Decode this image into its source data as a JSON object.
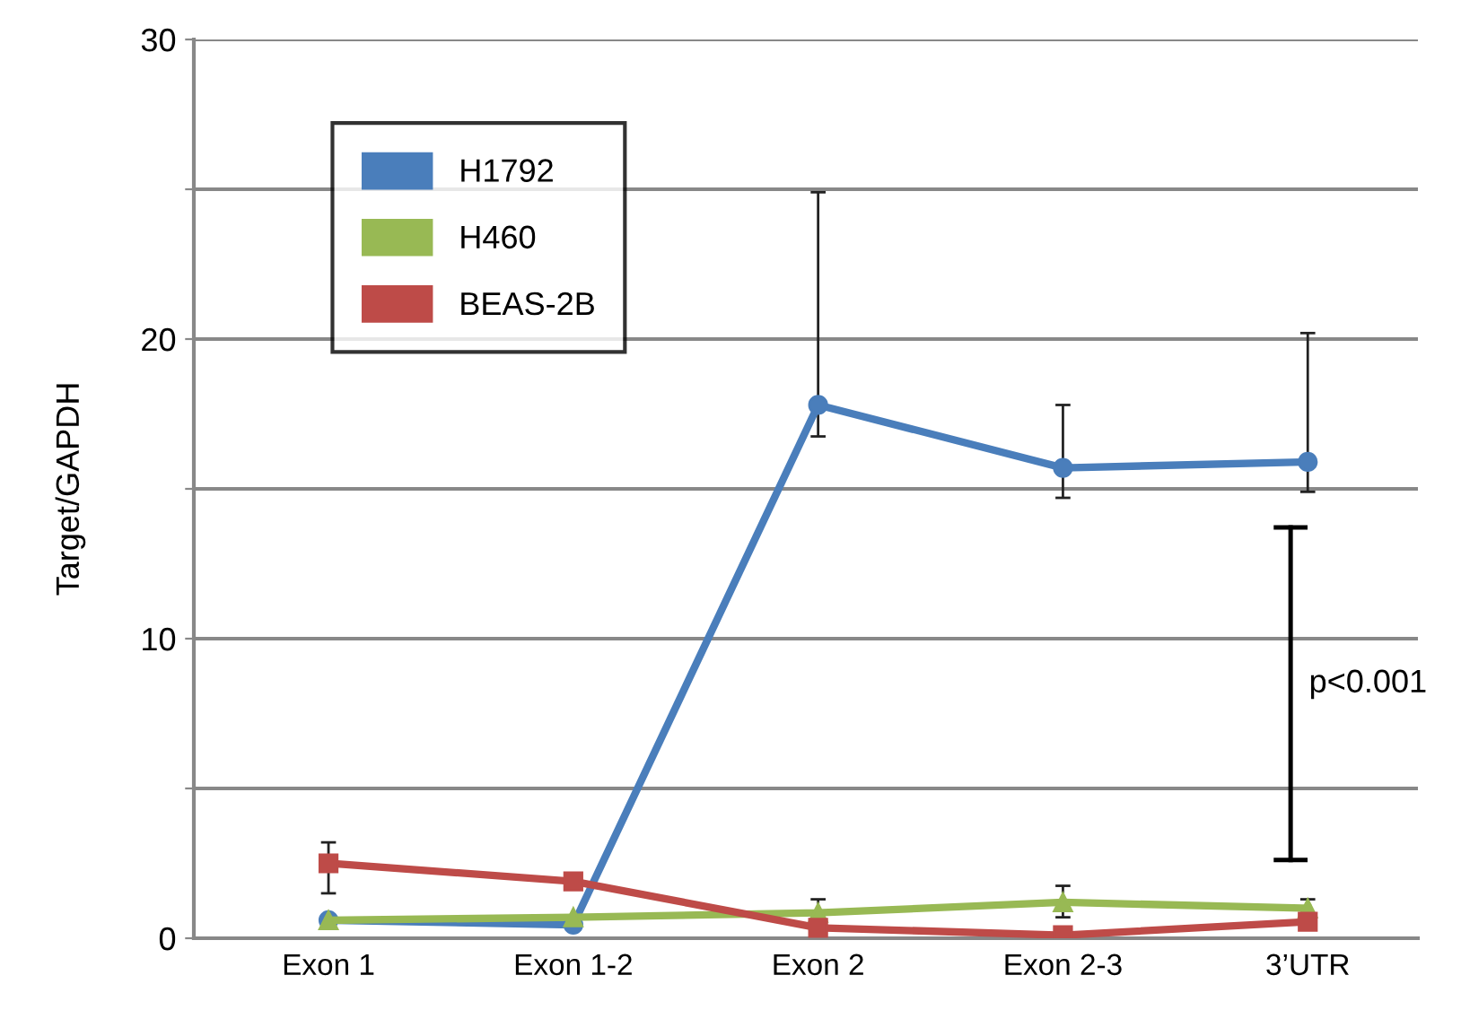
{
  "chart_data": {
    "type": "line",
    "ylabel": "Target/GAPDH",
    "categories": [
      "Exon 1",
      "Exon 1-2",
      "Exon 2",
      "Exon 2-3",
      "3’UTR"
    ],
    "series": [
      {
        "name": "H1792",
        "color": "#4a7ebb",
        "marker": "circle",
        "values": [
          0.6,
          0.45,
          17.8,
          15.7,
          15.9
        ],
        "errors": [
          null,
          null,
          [
            16.75,
            24.9
          ],
          [
            14.7,
            17.8
          ],
          [
            14.9,
            20.2
          ]
        ]
      },
      {
        "name": "H460",
        "color": "#98b954",
        "marker": "triangle",
        "values": [
          0.6,
          0.7,
          0.85,
          1.2,
          1.0
        ],
        "errors": [
          null,
          null,
          [
            0.85,
            1.3
          ],
          [
            0.7,
            1.75
          ],
          [
            0.7,
            1.3
          ]
        ]
      },
      {
        "name": "BEAS-2B",
        "color": "#be4b48",
        "marker": "square",
        "values": [
          2.5,
          1.9,
          0.35,
          0.1,
          0.55
        ],
        "errors": [
          [
            1.5,
            3.2
          ],
          null,
          null,
          null,
          null
        ]
      }
    ],
    "ylim": [
      0,
      30
    ],
    "yticks": [
      0,
      {
        "value": 5,
        "label": null
      },
      10,
      {
        "value": 15,
        "label": null
      },
      20,
      {
        "value": 25,
        "label": null
      },
      30
    ],
    "grid": "y",
    "legend": "top left",
    "line_style": "solid",
    "annotations": [
      "p<0.001"
    ]
  }
}
